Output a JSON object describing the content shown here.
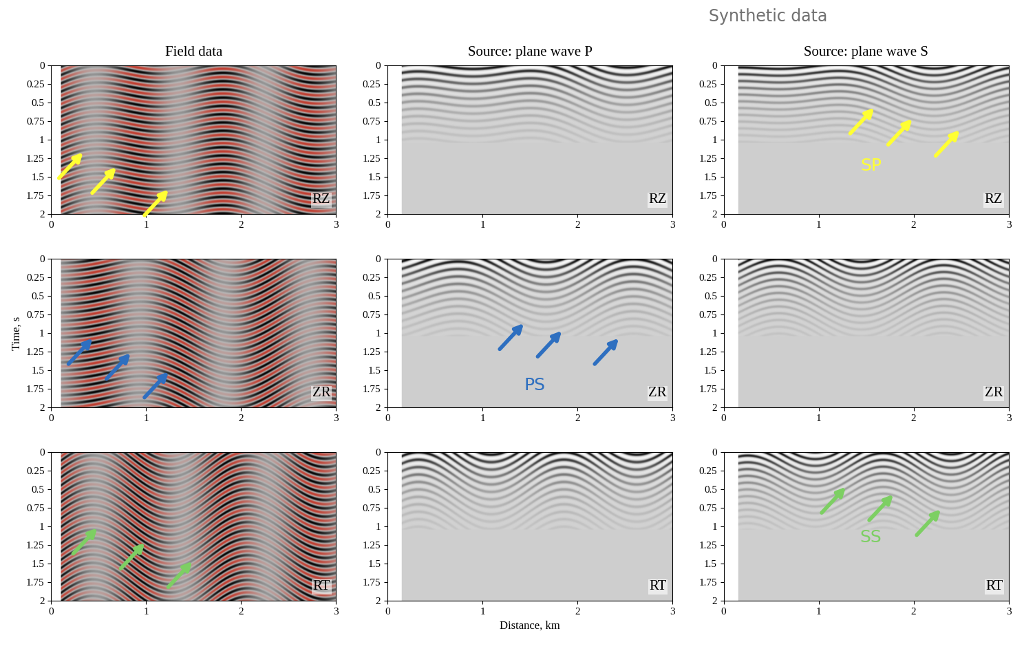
{
  "suptitle": "Synthetic data",
  "chart_data": [
    {
      "type": "image",
      "title": "Field data",
      "xlim": [
        0,
        3
      ],
      "ylim": [
        2,
        0
      ],
      "xticks": [
        0,
        1,
        2,
        3
      ],
      "yticks": [
        0,
        0.25,
        0.5,
        0.75,
        1,
        1.25,
        1.5,
        1.75,
        2
      ],
      "colors": [
        "#000000",
        "#b8b8b8",
        "#c0392b"
      ],
      "panel_label": "RZ",
      "arrows": {
        "color": "#ffff33",
        "x": [
          0.35,
          0.7,
          1.25
        ],
        "y": [
          1.15,
          1.35,
          1.65
        ]
      }
    },
    {
      "type": "image",
      "title": "Source: plane wave P",
      "xlim": [
        0,
        3
      ],
      "ylim": [
        2,
        0
      ],
      "xticks": [
        0,
        1,
        2,
        3
      ],
      "yticks": [
        0,
        0.25,
        0.5,
        0.75,
        1,
        1.25,
        1.5,
        1.75,
        2
      ],
      "colors": [
        "#ffffff",
        "#cfcfcf",
        "#000000"
      ],
      "panel_label": "RZ"
    },
    {
      "type": "image",
      "title": "Source: plane wave S",
      "xlim": [
        0,
        3
      ],
      "ylim": [
        2,
        0
      ],
      "xticks": [
        0,
        1,
        2,
        3
      ],
      "yticks": [
        0,
        0.25,
        0.5,
        0.75,
        1,
        1.25,
        1.5,
        1.75,
        2
      ],
      "colors": [
        "#ffffff",
        "#cfcfcf",
        "#000000"
      ],
      "panel_label": "RZ",
      "arrows": {
        "color": "#ffff33",
        "x": [
          1.6,
          2.0,
          2.5
        ],
        "y": [
          0.55,
          0.7,
          0.85
        ],
        "label": "SP",
        "label_x": 1.55,
        "label_y": 1.35
      }
    },
    {
      "type": "image",
      "ylabel": "Time, s",
      "xlim": [
        0,
        3
      ],
      "ylim": [
        2,
        0
      ],
      "xticks": [
        0,
        1,
        2,
        3
      ],
      "yticks": [
        0,
        0.25,
        0.5,
        0.75,
        1,
        1.25,
        1.5,
        1.75,
        2
      ],
      "colors": [
        "#000000",
        "#b8b8b8",
        "#c0392b"
      ],
      "panel_label": "ZR",
      "arrows": {
        "color": "#2e6fc0",
        "x": [
          0.45,
          0.85,
          1.25
        ],
        "y": [
          1.05,
          1.25,
          1.5
        ]
      }
    },
    {
      "type": "image",
      "xlim": [
        0,
        3
      ],
      "ylim": [
        2,
        0
      ],
      "xticks": [
        0,
        1,
        2,
        3
      ],
      "yticks": [
        0,
        0.25,
        0.5,
        0.75,
        1,
        1.25,
        1.5,
        1.75,
        2
      ],
      "colors": [
        "#ffffff",
        "#cfcfcf",
        "#000000"
      ],
      "panel_label": "ZR",
      "arrows": {
        "color": "#2e6fc0",
        "x": [
          1.45,
          1.85,
          2.45
        ],
        "y": [
          0.85,
          0.95,
          1.05
        ],
        "label": "PS",
        "label_x": 1.55,
        "label_y": 1.7
      }
    },
    {
      "type": "image",
      "xlim": [
        0,
        3
      ],
      "ylim": [
        2,
        0
      ],
      "xticks": [
        0,
        1,
        2,
        3
      ],
      "yticks": [
        0,
        0.25,
        0.5,
        0.75,
        1,
        1.25,
        1.5,
        1.75,
        2
      ],
      "colors": [
        "#ffffff",
        "#cfcfcf",
        "#000000"
      ],
      "panel_label": "ZR"
    },
    {
      "type": "image",
      "xlim": [
        0,
        3
      ],
      "ylim": [
        2,
        0
      ],
      "xticks": [
        0,
        1,
        2,
        3
      ],
      "yticks": [
        0,
        0.25,
        0.5,
        0.75,
        1,
        1.25,
        1.5,
        1.75,
        2
      ],
      "colors": [
        "#000000",
        "#b8b8b8",
        "#c0392b"
      ],
      "panel_label": "RT",
      "arrows": {
        "color": "#7dcf63",
        "x": [
          0.5,
          1.0,
          1.5
        ],
        "y": [
          1.0,
          1.2,
          1.45
        ]
      }
    },
    {
      "type": "image",
      "xlabel": "Distance, km",
      "xlim": [
        0,
        3
      ],
      "ylim": [
        2,
        0
      ],
      "xticks": [
        0,
        1,
        2,
        3
      ],
      "yticks": [
        0,
        0.25,
        0.5,
        0.75,
        1,
        1.25,
        1.5,
        1.75,
        2
      ],
      "colors": [
        "#ffffff",
        "#cfcfcf",
        "#000000"
      ],
      "panel_label": "RT"
    },
    {
      "type": "image",
      "xlim": [
        0,
        3
      ],
      "ylim": [
        2,
        0
      ],
      "xticks": [
        0,
        1,
        2,
        3
      ],
      "yticks": [
        0,
        0.25,
        0.5,
        0.75,
        1,
        1.25,
        1.5,
        1.75,
        2
      ],
      "colors": [
        "#ffffff",
        "#cfcfcf",
        "#000000"
      ],
      "panel_label": "RT",
      "arrows": {
        "color": "#7dcf63",
        "x": [
          1.3,
          1.8,
          2.3
        ],
        "y": [
          0.45,
          0.55,
          0.75
        ],
        "label": "SS",
        "label_x": 1.55,
        "label_y": 1.15
      }
    }
  ]
}
